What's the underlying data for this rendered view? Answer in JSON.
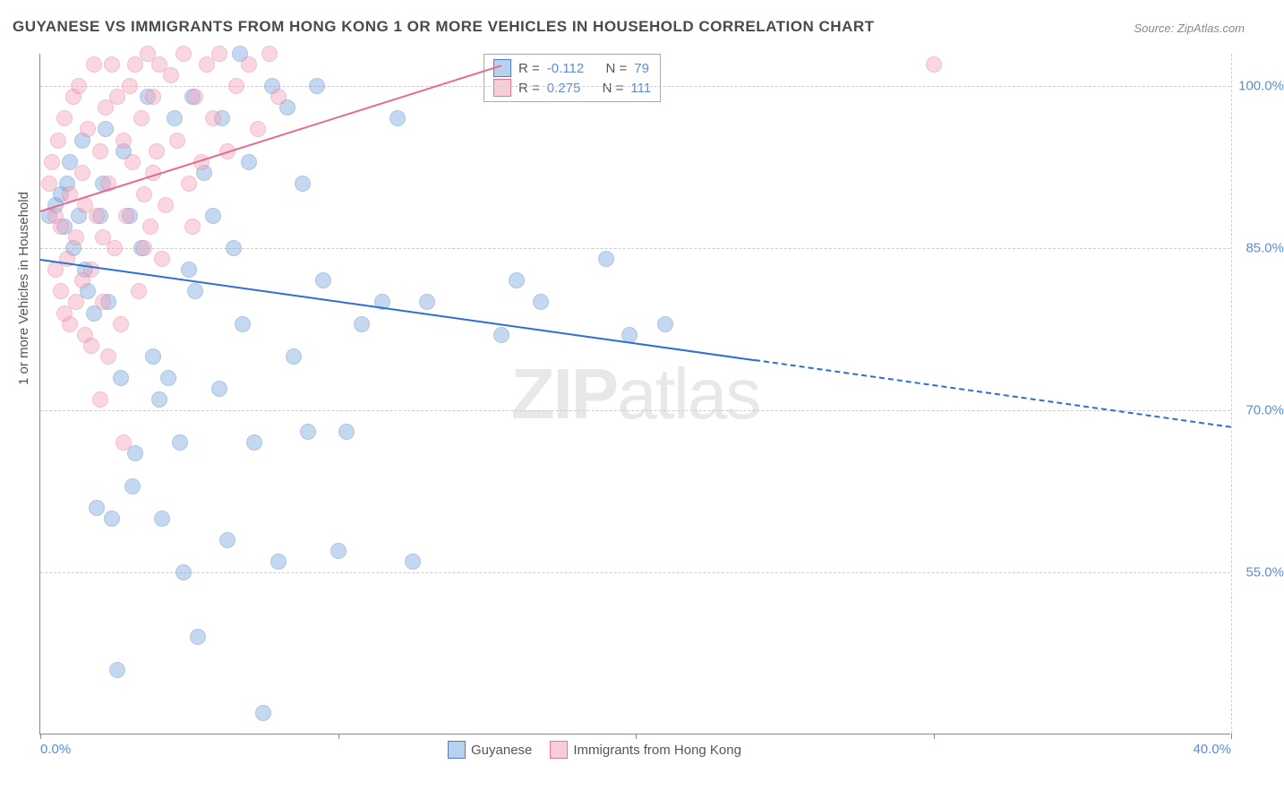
{
  "title": "GUYANESE VS IMMIGRANTS FROM HONG KONG 1 OR MORE VEHICLES IN HOUSEHOLD CORRELATION CHART",
  "source": "Source: ZipAtlas.com",
  "y_axis_title": "1 or more Vehicles in Household",
  "watermark": {
    "bold": "ZIP",
    "light": "atlas"
  },
  "chart": {
    "type": "scatter",
    "xlim": [
      0,
      40
    ],
    "ylim": [
      40,
      103
    ],
    "x_ticks": [
      0,
      10,
      20,
      30,
      40
    ],
    "x_tick_labels": [
      "0.0%",
      "",
      "",
      "",
      "40.0%"
    ],
    "y_ticks": [
      55,
      70,
      85,
      100
    ],
    "y_tick_labels": [
      "55.0%",
      "70.0%",
      "85.0%",
      "100.0%"
    ],
    "background_color": "#ffffff",
    "grid_color": "#cccccc",
    "marker_radius": 9,
    "marker_opacity": 0.45,
    "series": [
      {
        "id": "guyanese",
        "label": "Guyanese",
        "color_fill": "#7ea9e0",
        "color_stroke": "#4f7fc6",
        "r": "-0.112",
        "n": "79",
        "trend": {
          "x1": 0,
          "y1": 84,
          "x2": 40,
          "y2": 68.5,
          "solid_until_x": 24,
          "color": "#2a6fd6"
        },
        "points": [
          [
            0.3,
            88
          ],
          [
            0.5,
            89
          ],
          [
            0.7,
            90
          ],
          [
            0.8,
            87
          ],
          [
            0.9,
            91
          ],
          [
            1.0,
            93
          ],
          [
            1.1,
            85
          ],
          [
            1.3,
            88
          ],
          [
            1.4,
            95
          ],
          [
            1.5,
            83
          ],
          [
            1.6,
            81
          ],
          [
            1.8,
            79
          ],
          [
            2.0,
            88
          ],
          [
            2.1,
            91
          ],
          [
            2.2,
            96
          ],
          [
            2.3,
            80
          ],
          [
            2.4,
            60
          ],
          [
            2.6,
            46
          ],
          [
            2.8,
            94
          ],
          [
            3.0,
            88
          ],
          [
            3.2,
            66
          ],
          [
            3.4,
            85
          ],
          [
            3.6,
            99
          ],
          [
            3.8,
            75
          ],
          [
            4.0,
            71
          ],
          [
            4.1,
            60
          ],
          [
            4.3,
            73
          ],
          [
            4.5,
            97
          ],
          [
            4.8,
            55
          ],
          [
            5.0,
            83
          ],
          [
            5.2,
            81
          ],
          [
            5.3,
            49
          ],
          [
            5.5,
            92
          ],
          [
            5.8,
            88
          ],
          [
            6.0,
            72
          ],
          [
            6.1,
            97
          ],
          [
            6.3,
            58
          ],
          [
            6.5,
            85
          ],
          [
            6.8,
            78
          ],
          [
            7.0,
            93
          ],
          [
            7.2,
            67
          ],
          [
            7.5,
            42
          ],
          [
            7.8,
            100
          ],
          [
            8.0,
            56
          ],
          [
            8.3,
            98
          ],
          [
            8.5,
            75
          ],
          [
            8.8,
            91
          ],
          [
            9.0,
            68
          ],
          [
            9.3,
            100
          ],
          [
            9.5,
            82
          ],
          [
            10.0,
            57
          ],
          [
            10.3,
            68
          ],
          [
            10.8,
            78
          ],
          [
            11.5,
            80
          ],
          [
            12.0,
            97
          ],
          [
            12.5,
            56
          ],
          [
            13.0,
            80
          ],
          [
            15.5,
            77
          ],
          [
            16.0,
            82
          ],
          [
            16.8,
            80
          ],
          [
            19.0,
            84
          ],
          [
            19.8,
            77
          ],
          [
            21.0,
            78
          ],
          [
            4.7,
            67
          ],
          [
            3.1,
            63
          ],
          [
            1.9,
            61
          ],
          [
            2.7,
            73
          ],
          [
            6.7,
            103
          ],
          [
            5.1,
            99
          ]
        ]
      },
      {
        "id": "hongkong",
        "label": "Immigrants from Hong Kong",
        "color_fill": "#f5a6bb",
        "color_stroke": "#e37795",
        "r": "0.275",
        "n": "111",
        "trend": {
          "x1": 0,
          "y1": 88.5,
          "x2": 15.5,
          "y2": 102,
          "solid_until_x": 15.5,
          "color": "#e86a8f"
        },
        "points": [
          [
            0.3,
            91
          ],
          [
            0.4,
            93
          ],
          [
            0.5,
            88
          ],
          [
            0.6,
            95
          ],
          [
            0.7,
            87
          ],
          [
            0.8,
            97
          ],
          [
            0.9,
            84
          ],
          [
            1.0,
            90
          ],
          [
            1.1,
            99
          ],
          [
            1.2,
            86
          ],
          [
            1.3,
            100
          ],
          [
            1.4,
            92
          ],
          [
            1.5,
            89
          ],
          [
            1.6,
            96
          ],
          [
            1.7,
            83
          ],
          [
            1.8,
            102
          ],
          [
            1.9,
            88
          ],
          [
            2.0,
            94
          ],
          [
            2.1,
            80
          ],
          [
            2.2,
            98
          ],
          [
            2.3,
            91
          ],
          [
            2.4,
            102
          ],
          [
            2.5,
            85
          ],
          [
            2.6,
            99
          ],
          [
            2.7,
            78
          ],
          [
            2.8,
            95
          ],
          [
            2.9,
            88
          ],
          [
            3.0,
            100
          ],
          [
            3.1,
            93
          ],
          [
            3.2,
            102
          ],
          [
            3.3,
            81
          ],
          [
            3.4,
            97
          ],
          [
            3.5,
            90
          ],
          [
            3.6,
            103
          ],
          [
            3.7,
            87
          ],
          [
            3.8,
            99
          ],
          [
            3.9,
            94
          ],
          [
            4.0,
            102
          ],
          [
            4.2,
            89
          ],
          [
            4.4,
            101
          ],
          [
            4.6,
            95
          ],
          [
            4.8,
            103
          ],
          [
            5.0,
            91
          ],
          [
            5.2,
            99
          ],
          [
            5.4,
            93
          ],
          [
            5.6,
            102
          ],
          [
            5.8,
            97
          ],
          [
            6.0,
            103
          ],
          [
            6.3,
            94
          ],
          [
            6.6,
            100
          ],
          [
            7.0,
            102
          ],
          [
            7.3,
            96
          ],
          [
            7.7,
            103
          ],
          [
            8.0,
            99
          ],
          [
            1.5,
            77
          ],
          [
            2.0,
            71
          ],
          [
            2.8,
            67
          ],
          [
            1.2,
            80
          ],
          [
            0.7,
            81
          ],
          [
            30.0,
            102
          ],
          [
            4.1,
            84
          ],
          [
            3.5,
            85
          ],
          [
            5.1,
            87
          ],
          [
            2.3,
            75
          ],
          [
            1.0,
            78
          ],
          [
            1.7,
            76
          ],
          [
            0.5,
            83
          ],
          [
            0.8,
            79
          ],
          [
            1.4,
            82
          ],
          [
            2.1,
            86
          ],
          [
            3.8,
            92
          ]
        ]
      }
    ]
  },
  "stats_box": {
    "rows": [
      {
        "swatch_fill": "#b9d0ee",
        "swatch_stroke": "#4f7fc6",
        "r_label": "R =",
        "r_val": "-0.112",
        "n_label": "N =",
        "n_val": "79"
      },
      {
        "swatch_fill": "#f7cdd8",
        "swatch_stroke": "#e37795",
        "r_label": "R =",
        "r_val": "0.275",
        "n_label": "N =",
        "n_val": "111"
      }
    ]
  },
  "legend": [
    {
      "swatch_fill": "#b9d0ee",
      "swatch_stroke": "#4f7fc6",
      "label": "Guyanese"
    },
    {
      "swatch_fill": "#f7cdd8",
      "swatch_stroke": "#e37795",
      "label": "Immigrants from Hong Kong"
    }
  ]
}
